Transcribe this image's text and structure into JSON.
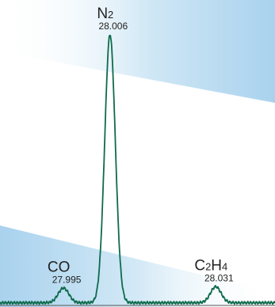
{
  "chart_data": {
    "type": "line",
    "xlabel": "",
    "ylabel": "",
    "grid": false,
    "line_color": "#0f6b4c",
    "background_band_color": "#bfe0f3",
    "x_range": [
      27.98,
      28.045
    ],
    "y_range": [
      0,
      1.0
    ],
    "peaks": [
      {
        "species": "CO",
        "species_parts": [
          {
            "text": "CO",
            "sub": false
          }
        ],
        "mass": "27.995",
        "x": 27.995,
        "height": 0.055
      },
      {
        "species": "N2",
        "species_parts": [
          {
            "text": "N",
            "sub": false
          },
          {
            "text": "2",
            "sub": true
          }
        ],
        "mass": "28.006",
        "x": 28.006,
        "height": 1.0
      },
      {
        "species": "C2H4",
        "species_parts": [
          {
            "text": "C",
            "sub": false
          },
          {
            "text": "2",
            "sub": true
          },
          {
            "text": "H",
            "sub": false
          },
          {
            "text": "4",
            "sub": true
          }
        ],
        "mass": "28.031",
        "x": 28.031,
        "height": 0.06
      }
    ]
  }
}
